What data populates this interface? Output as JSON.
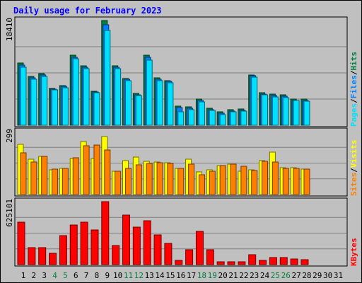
{
  "chart_data": {
    "type": "bar",
    "title": "Daily usage for February 2023",
    "colors": {
      "hits": "#008040",
      "files": "#0080ff",
      "pages": "#00e0ff",
      "visits": "#ffff00",
      "sites": "#ff8000",
      "kbytes": "#ff0000",
      "weekend_day": "#008040",
      "weekday_day": "#000000",
      "background": "#c0c0c0",
      "title": "#0000ff",
      "separator": "#000000"
    },
    "days": [
      {
        "label": "1",
        "weekend": false
      },
      {
        "label": "2",
        "weekend": false
      },
      {
        "label": "3",
        "weekend": false
      },
      {
        "label": "4",
        "weekend": true
      },
      {
        "label": "5",
        "weekend": true
      },
      {
        "label": "6",
        "weekend": false
      },
      {
        "label": "7",
        "weekend": false
      },
      {
        "label": "8",
        "weekend": false
      },
      {
        "label": "9",
        "weekend": false
      },
      {
        "label": "10",
        "weekend": false
      },
      {
        "label": "11",
        "weekend": true
      },
      {
        "label": "12",
        "weekend": true
      },
      {
        "label": "13",
        "weekend": false
      },
      {
        "label": "14",
        "weekend": false
      },
      {
        "label": "15",
        "weekend": false
      },
      {
        "label": "16",
        "weekend": false
      },
      {
        "label": "17",
        "weekend": false
      },
      {
        "label": "18",
        "weekend": true
      },
      {
        "label": "19",
        "weekend": true
      },
      {
        "label": "20",
        "weekend": false
      },
      {
        "label": "21",
        "weekend": false
      },
      {
        "label": "22",
        "weekend": false
      },
      {
        "label": "23",
        "weekend": false
      },
      {
        "label": "24",
        "weekend": false
      },
      {
        "label": "25",
        "weekend": true
      },
      {
        "label": "26",
        "weekend": true
      },
      {
        "label": "27",
        "weekend": false
      },
      {
        "label": "28",
        "weekend": false
      },
      {
        "label": "29",
        "weekend": false
      },
      {
        "label": "30",
        "weekend": false
      },
      {
        "label": "31",
        "weekend": false
      }
    ],
    "panels": [
      {
        "id": "hits",
        "max_label": "18410",
        "ylim": [
          0,
          18410
        ],
        "legend": [
          {
            "text": "Pages",
            "color": "#00e0ff"
          },
          {
            "text": "/",
            "color": "#000000"
          },
          {
            "text": "Files",
            "color": "#0080ff"
          },
          {
            "text": "/",
            "color": "#000000"
          },
          {
            "text": "Hits",
            "color": "#008040"
          }
        ],
        "series": [
          {
            "name": "Hits",
            "color": "#008040",
            "values": [
              10920,
              8550,
              9070,
              6520,
              6980,
              12290,
              10470,
              6000,
              18410,
              10480,
              8250,
              5640,
              12300,
              8300,
              7880,
              3340,
              3230,
              4550,
              3010,
              2380,
              2780,
              2870,
              8870,
              5730,
              5470,
              5320,
              4640,
              4550,
              0,
              0,
              0
            ]
          },
          {
            "name": "Files",
            "color": "#0080ff",
            "values": [
              10520,
              8320,
              8840,
              6320,
              6780,
              11930,
              10240,
              5850,
              17690,
              10240,
              8040,
              5410,
              11930,
              8060,
              7660,
              3080,
              2980,
              4330,
              2790,
              2100,
              2550,
              2660,
              8650,
              5520,
              5250,
              5090,
              4410,
              4330,
              0,
              0,
              0
            ]
          },
          {
            "name": "Pages",
            "color": "#00e0ff",
            "values": [
              10250,
              8100,
              8640,
              6160,
              6630,
              11650,
              10010,
              5690,
              16690,
              10010,
              7850,
              5250,
              11460,
              7820,
              7430,
              2420,
              2760,
              4110,
              2610,
              1880,
              2410,
              2550,
              8420,
              5300,
              5030,
              4870,
              4300,
              4190,
              0,
              0,
              0
            ]
          }
        ]
      },
      {
        "id": "visits",
        "max_label": "299",
        "ylim": [
          0,
          299
        ],
        "legend": [
          {
            "text": "Sites",
            "color": "#ff8000"
          },
          {
            "text": "/",
            "color": "#000000"
          },
          {
            "text": "Visits",
            "color": "#ffff00"
          }
        ],
        "series": [
          {
            "name": "Visits",
            "color": "#ffff00",
            "values": [
              238,
              167,
              180,
              116,
              124,
              171,
              251,
              172,
              276,
              112,
              160,
              177,
              159,
              154,
              150,
              124,
              167,
              106,
              117,
              138,
              145,
              112,
              116,
              162,
              200,
              129,
              129,
              122,
              0,
              0,
              0
            ]
          },
          {
            "name": "Sites",
            "color": "#ff8000",
            "values": [
              197,
              153,
              180,
              122,
              125,
              175,
              233,
              236,
              210,
              112,
              124,
              142,
              148,
              151,
              149,
              123,
              144,
              95,
              111,
              138,
              144,
              135,
              115,
              157,
              153,
              124,
              123,
              122,
              0,
              0,
              0
            ]
          }
        ]
      },
      {
        "id": "kbytes",
        "max_label": "625101",
        "ylim": [
          0,
          625101
        ],
        "legend": [
          {
            "text": "KBytes",
            "color": "#ff0000"
          }
        ],
        "series": [
          {
            "name": "KBytes",
            "color": "#ff0000",
            "values": [
              422000,
              167000,
              170000,
              110000,
              285000,
              396000,
              424000,
              347000,
              625101,
              190000,
              489000,
              369000,
              432000,
              293000,
              214000,
              39000,
              149000,
              330000,
              148000,
              28000,
              28000,
              30000,
              96000,
              44000,
              73000,
              71000,
              57000,
              50000,
              0,
              0,
              0
            ]
          }
        ]
      }
    ]
  }
}
